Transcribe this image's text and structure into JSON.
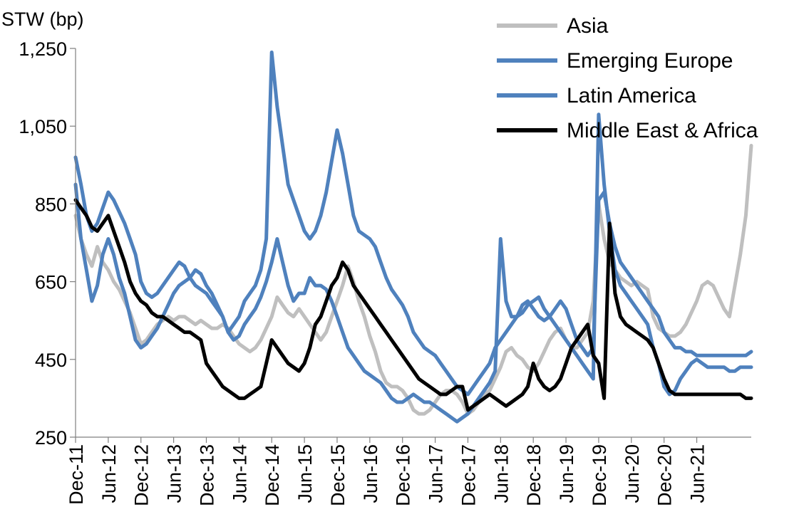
{
  "chart_data": {
    "type": "line",
    "ylabel": "STW (bp)",
    "ylim": [
      250,
      1250
    ],
    "yticks": [
      250,
      450,
      650,
      850,
      1050,
      1250
    ],
    "ytick_labels": [
      "250",
      "450",
      "650",
      "850",
      "1,050",
      "1,250"
    ],
    "xlim": [
      0,
      124
    ],
    "x_unit": "months since Dec-11",
    "xtick_values": [
      0,
      6,
      12,
      18,
      24,
      30,
      36,
      42,
      48,
      54,
      60,
      66,
      72,
      78,
      84,
      90,
      96,
      102,
      108,
      114
    ],
    "xtick_labels": [
      "Dec-11",
      "Jun-12",
      "Dec-12",
      "Jun-13",
      "Dec-13",
      "Jun-14",
      "Dec-14",
      "Jun-15",
      "Dec-15",
      "Jun-16",
      "Dec-16",
      "Jun-17",
      "Dec-17",
      "Jun-18",
      "Dec-18",
      "Jun-19",
      "Dec-19",
      "Jun-20",
      "Dec-20",
      "Jun-21"
    ],
    "legend_position": "top-right",
    "series": [
      {
        "name": "Asia",
        "color": "#bfbfbf",
        "x": [
          0,
          1,
          2,
          3,
          4,
          5,
          6,
          7,
          8,
          9,
          10,
          11,
          12,
          13,
          14,
          15,
          16,
          17,
          18,
          19,
          20,
          21,
          22,
          23,
          24,
          25,
          26,
          27,
          28,
          29,
          30,
          31,
          32,
          33,
          34,
          35,
          36,
          37,
          38,
          39,
          40,
          41,
          42,
          43,
          44,
          45,
          46,
          47,
          48,
          49,
          50,
          51,
          52,
          53,
          54,
          55,
          56,
          57,
          58,
          59,
          60,
          61,
          62,
          63,
          64,
          65,
          66,
          67,
          68,
          69,
          70,
          71,
          72,
          73,
          74,
          75,
          76,
          77,
          78,
          79,
          80,
          81,
          82,
          83,
          84,
          85,
          86,
          87,
          88,
          89,
          90,
          91,
          92,
          93,
          94,
          95,
          96,
          97,
          98,
          99,
          100,
          101,
          102,
          103,
          104,
          105,
          106,
          107,
          108,
          109,
          110,
          111,
          112,
          113,
          114,
          115,
          116,
          117,
          118,
          119,
          120,
          121,
          122,
          123,
          124
        ],
        "values": [
          820,
          760,
          720,
          690,
          740,
          700,
          680,
          650,
          630,
          600,
          570,
          530,
          490,
          500,
          520,
          540,
          550,
          560,
          550,
          560,
          560,
          550,
          540,
          550,
          540,
          530,
          530,
          540,
          530,
          510,
          490,
          480,
          470,
          480,
          500,
          530,
          560,
          610,
          590,
          570,
          560,
          580,
          560,
          540,
          520,
          500,
          520,
          560,
          600,
          640,
          690,
          650,
          600,
          560,
          510,
          470,
          420,
          390,
          380,
          380,
          370,
          350,
          320,
          310,
          310,
          320,
          340,
          360,
          370,
          370,
          360,
          340,
          310,
          320,
          340,
          360,
          370,
          400,
          430,
          470,
          480,
          460,
          450,
          430,
          420,
          440,
          470,
          500,
          520,
          530,
          500,
          480,
          480,
          500,
          520,
          600,
          850,
          760,
          700,
          680,
          660,
          650,
          640,
          650,
          640,
          630,
          560,
          530,
          520,
          510,
          510,
          520,
          540,
          570,
          600,
          640,
          650,
          640,
          610,
          580,
          560,
          640,
          720,
          820,
          1000
        ]
      },
      {
        "name": "Emerging Europe",
        "color": "#4f81bd",
        "x": [
          0,
          1,
          2,
          3,
          4,
          5,
          6,
          7,
          8,
          9,
          10,
          11,
          12,
          13,
          14,
          15,
          16,
          17,
          18,
          19,
          20,
          21,
          22,
          23,
          24,
          25,
          26,
          27,
          28,
          29,
          30,
          31,
          32,
          33,
          34,
          35,
          36,
          37,
          38,
          39,
          40,
          41,
          42,
          43,
          44,
          45,
          46,
          47,
          48,
          49,
          50,
          51,
          52,
          53,
          54,
          55,
          56,
          57,
          58,
          59,
          60,
          61,
          62,
          63,
          64,
          65,
          66,
          67,
          68,
          69,
          70,
          71,
          72,
          73,
          74,
          75,
          76,
          77,
          78,
          79,
          80,
          81,
          82,
          83,
          84,
          85,
          86,
          87,
          88,
          89,
          90,
          91,
          92,
          93,
          94,
          95,
          96,
          97,
          98,
          99,
          100,
          101,
          102,
          103,
          104,
          105,
          106,
          107,
          108,
          109,
          110,
          111,
          112,
          113,
          114,
          115,
          116,
          117,
          118,
          119,
          120,
          121,
          122,
          123,
          124
        ],
        "values": [
          970,
          900,
          820,
          780,
          800,
          840,
          880,
          860,
          830,
          800,
          760,
          720,
          650,
          620,
          610,
          620,
          640,
          660,
          680,
          700,
          690,
          660,
          640,
          630,
          620,
          600,
          580,
          560,
          520,
          540,
          560,
          600,
          620,
          640,
          680,
          760,
          1240,
          1100,
          1000,
          900,
          860,
          820,
          780,
          760,
          780,
          820,
          880,
          960,
          1040,
          980,
          900,
          820,
          780,
          770,
          760,
          740,
          700,
          660,
          630,
          610,
          590,
          560,
          520,
          500,
          480,
          470,
          460,
          440,
          420,
          400,
          380,
          370,
          360,
          380,
          400,
          420,
          440,
          480,
          500,
          520,
          540,
          560,
          590,
          600,
          580,
          560,
          550,
          560,
          580,
          600,
          580,
          540,
          500,
          480,
          460,
          480,
          860,
          880,
          800,
          740,
          700,
          680,
          660,
          640,
          620,
          600,
          580,
          560,
          520,
          500,
          480,
          480,
          470,
          470,
          460,
          460,
          460,
          460,
          460,
          460,
          460,
          460,
          460,
          460,
          470
        ]
      },
      {
        "name": "Latin America",
        "color": "#4f81bd",
        "x": [
          0,
          1,
          2,
          3,
          4,
          5,
          6,
          7,
          8,
          9,
          10,
          11,
          12,
          13,
          14,
          15,
          16,
          17,
          18,
          19,
          20,
          21,
          22,
          23,
          24,
          25,
          26,
          27,
          28,
          29,
          30,
          31,
          32,
          33,
          34,
          35,
          36,
          37,
          38,
          39,
          40,
          41,
          42,
          43,
          44,
          45,
          46,
          47,
          48,
          49,
          50,
          51,
          52,
          53,
          54,
          55,
          56,
          57,
          58,
          59,
          60,
          61,
          62,
          63,
          64,
          65,
          66,
          67,
          68,
          69,
          70,
          71,
          72,
          73,
          74,
          75,
          76,
          77,
          78,
          79,
          80,
          81,
          82,
          83,
          84,
          85,
          86,
          87,
          88,
          89,
          90,
          91,
          92,
          93,
          94,
          95,
          96,
          97,
          98,
          99,
          100,
          101,
          102,
          103,
          104,
          105,
          106,
          107,
          108,
          109,
          110,
          111,
          112,
          113,
          114,
          115,
          116,
          117,
          118,
          119,
          120,
          121,
          122,
          123,
          124
        ],
        "values": [
          900,
          760,
          680,
          600,
          640,
          720,
          760,
          720,
          660,
          620,
          560,
          500,
          480,
          490,
          510,
          530,
          560,
          590,
          620,
          640,
          650,
          660,
          680,
          670,
          640,
          620,
          590,
          560,
          520,
          500,
          510,
          540,
          560,
          580,
          610,
          650,
          700,
          760,
          700,
          640,
          600,
          620,
          620,
          660,
          640,
          640,
          630,
          600,
          560,
          520,
          480,
          460,
          440,
          420,
          410,
          400,
          390,
          370,
          350,
          340,
          340,
          350,
          360,
          350,
          340,
          340,
          330,
          320,
          310,
          300,
          290,
          300,
          310,
          330,
          350,
          370,
          390,
          420,
          760,
          600,
          560,
          560,
          570,
          590,
          600,
          610,
          580,
          560,
          540,
          520,
          500,
          480,
          460,
          440,
          420,
          400,
          1080,
          900,
          780,
          680,
          640,
          620,
          600,
          580,
          560,
          540,
          480,
          440,
          380,
          360,
          370,
          400,
          420,
          440,
          450,
          440,
          430,
          430,
          430,
          430,
          420,
          420,
          430,
          430,
          430
        ]
      },
      {
        "name": "Middle East & Africa",
        "color": "#000000",
        "x": [
          0,
          1,
          2,
          3,
          4,
          5,
          6,
          7,
          8,
          9,
          10,
          11,
          12,
          13,
          14,
          15,
          16,
          17,
          18,
          19,
          20,
          21,
          22,
          23,
          24,
          25,
          26,
          27,
          28,
          29,
          30,
          31,
          32,
          33,
          34,
          35,
          36,
          37,
          38,
          39,
          40,
          41,
          42,
          43,
          44,
          45,
          46,
          47,
          48,
          49,
          50,
          51,
          52,
          53,
          54,
          55,
          56,
          57,
          58,
          59,
          60,
          61,
          62,
          63,
          64,
          65,
          66,
          67,
          68,
          69,
          70,
          71,
          72,
          73,
          74,
          75,
          76,
          77,
          78,
          79,
          80,
          81,
          82,
          83,
          84,
          85,
          86,
          87,
          88,
          89,
          90,
          91,
          92,
          93,
          94,
          95,
          96,
          97,
          98,
          99,
          100,
          101,
          102,
          103,
          104,
          105,
          106,
          107,
          108,
          109,
          110,
          111,
          112,
          113,
          114,
          115,
          116,
          117,
          118,
          119,
          120,
          121,
          122,
          123,
          124
        ],
        "values": [
          860,
          840,
          820,
          790,
          780,
          800,
          820,
          780,
          740,
          700,
          650,
          620,
          600,
          590,
          570,
          560,
          560,
          550,
          540,
          530,
          520,
          520,
          510,
          500,
          440,
          420,
          400,
          380,
          370,
          360,
          350,
          350,
          360,
          370,
          380,
          440,
          500,
          480,
          460,
          440,
          430,
          420,
          440,
          480,
          540,
          560,
          600,
          640,
          660,
          700,
          680,
          640,
          620,
          600,
          580,
          560,
          540,
          520,
          500,
          480,
          460,
          440,
          420,
          400,
          390,
          380,
          370,
          360,
          360,
          370,
          380,
          380,
          320,
          330,
          340,
          350,
          360,
          350,
          340,
          330,
          340,
          350,
          360,
          380,
          440,
          400,
          380,
          370,
          380,
          400,
          440,
          480,
          500,
          520,
          540,
          460,
          440,
          350,
          800,
          620,
          560,
          540,
          530,
          520,
          510,
          500,
          480,
          440,
          400,
          370,
          360,
          360,
          360,
          360,
          360,
          360,
          360,
          360,
          360,
          360,
          360,
          360,
          360,
          350,
          350
        ]
      }
    ]
  }
}
